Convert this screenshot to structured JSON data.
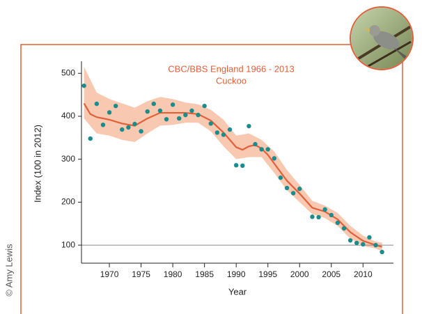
{
  "chart_data": {
    "type": "scatter",
    "title": "CBC/BBS England 1966 - 2013",
    "subtitle": "Cuckoo",
    "y_label": "Index (100 in 2012)",
    "x_label": "Year",
    "credit": "© Amy Lewis",
    "xlim": [
      1965.6,
      2014.8
    ],
    "xticks": [
      1970,
      1975,
      1980,
      1985,
      1990,
      1995,
      2000,
      2005,
      2010
    ],
    "ylim": [
      58,
      528
    ],
    "yticks": [
      100,
      200,
      300,
      400,
      500
    ],
    "reference_line": 100,
    "points": {
      "color": "#1a8c8c",
      "x": [
        1966,
        1967,
        1968,
        1969,
        1970,
        1971,
        1972,
        1973,
        1974,
        1975,
        1976,
        1977,
        1978,
        1979,
        1980,
        1981,
        1982,
        1983,
        1984,
        1985,
        1986,
        1987,
        1988,
        1989,
        1990,
        1991,
        1992,
        1993,
        1994,
        1995,
        1996,
        1997,
        1998,
        1999,
        2000,
        2002,
        2003,
        2004,
        2005,
        2006,
        2007,
        2008,
        2009,
        2010,
        2011,
        2012,
        2013
      ],
      "values": [
        471,
        348,
        429,
        380,
        409,
        424,
        369,
        374,
        382,
        365,
        411,
        429,
        413,
        393,
        427,
        395,
        403,
        413,
        403,
        424,
        383,
        362,
        357,
        369,
        286,
        285,
        377,
        335,
        323,
        323,
        302,
        257,
        233,
        221,
        231,
        166,
        165,
        183,
        170,
        152,
        139,
        111,
        105,
        102,
        118,
        100,
        84
      ]
    },
    "trend": {
      "color": "#e0603a",
      "x": [
        1966,
        1967,
        1968,
        1970,
        1972,
        1974,
        1976,
        1978,
        1980,
        1982,
        1984,
        1986,
        1988,
        1990,
        1991,
        1992,
        1993,
        1994,
        1995,
        1996,
        1998,
        2000,
        2002,
        2004,
        2006,
        2008,
        2010,
        2012,
        2013
      ],
      "values": [
        430,
        405,
        398,
        392,
        383,
        378,
        395,
        408,
        408,
        408,
        405,
        390,
        362,
        328,
        322,
        330,
        333,
        325,
        310,
        290,
        250,
        220,
        187,
        178,
        160,
        130,
        110,
        100,
        96
      ]
    },
    "band": {
      "color": "#f9c8b0",
      "x": [
        1966,
        1968,
        1970,
        1972,
        1974,
        1976,
        1978,
        1980,
        1982,
        1984,
        1986,
        1988,
        1990,
        1992,
        1994,
        1996,
        1998,
        2000,
        2002,
        2004,
        2006,
        2008,
        2010,
        2012,
        2013
      ],
      "upper": [
        515,
        455,
        440,
        430,
        420,
        435,
        445,
        440,
        432,
        428,
        415,
        392,
        355,
        360,
        345,
        318,
        275,
        240,
        203,
        192,
        175,
        145,
        122,
        108,
        106
      ],
      "lower": [
        395,
        360,
        355,
        345,
        340,
        360,
        378,
        380,
        385,
        385,
        365,
        330,
        300,
        305,
        305,
        268,
        228,
        200,
        172,
        163,
        145,
        115,
        98,
        92,
        86
      ]
    }
  }
}
